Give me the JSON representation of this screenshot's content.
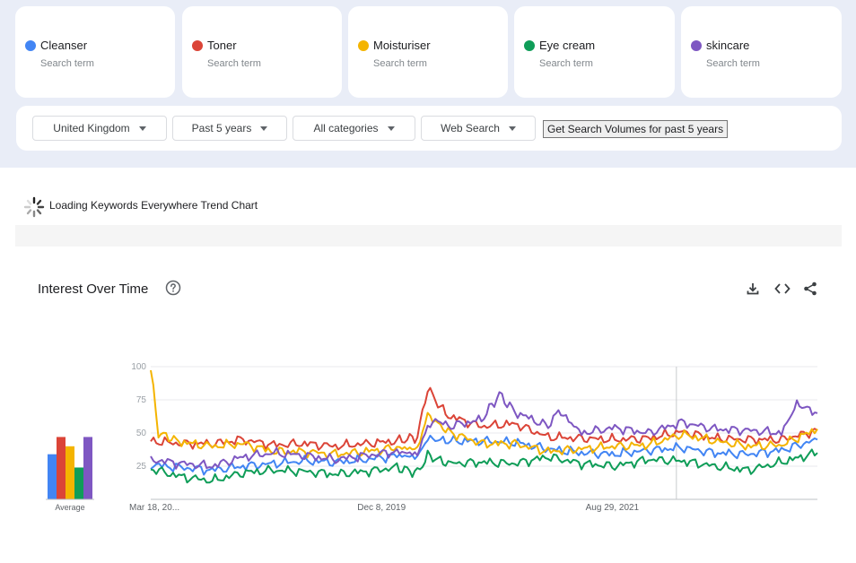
{
  "terms": [
    {
      "name": "Cleanser",
      "sub": "Search term",
      "color": "#4285f4"
    },
    {
      "name": "Toner",
      "sub": "Search term",
      "color": "#db4437"
    },
    {
      "name": "Moisturiser",
      "sub": "Search term",
      "color": "#f4b400"
    },
    {
      "name": "Eye cream",
      "sub": "Search term",
      "color": "#0f9d58"
    },
    {
      "name": "skincare",
      "sub": "Search term",
      "color": "#7e57c2"
    }
  ],
  "filters": {
    "region": "United Kingdom",
    "period": "Past 5 years",
    "category": "All categories",
    "search_type": "Web Search",
    "volume_button": "Get Search Volumes for past 5 years"
  },
  "loading_text": "Loading Keywords Everywhere Trend Chart",
  "chart_title": "Interest Over Time",
  "icons": {
    "help": "help-circle-icon",
    "download": "download-icon",
    "embed": "embed-code-icon",
    "share": "share-icon"
  },
  "chart_data": {
    "type": "line",
    "title": "Interest Over Time",
    "x_range": [
      "2018-03-18",
      "2023-03-12"
    ],
    "x_tick_labels": [
      "Mar 18, 20...",
      "Dec 8, 2019",
      "Aug 29, 2021"
    ],
    "x_tick_dates": [
      "2018-03-18",
      "2019-12-08",
      "2021-08-29"
    ],
    "y_ticks": [
      100,
      75,
      50,
      25
    ],
    "ylim": [
      0,
      100
    ],
    "grid": true,
    "partial_data_marker": "2022-02-20",
    "average_label": "Average",
    "averages": [
      {
        "term": "Cleanser",
        "value": 34,
        "color": "#4285f4"
      },
      {
        "term": "Toner",
        "value": 47,
        "color": "#db4437"
      },
      {
        "term": "Moisturiser",
        "value": 40,
        "color": "#f4b400"
      },
      {
        "term": "Eye cream",
        "value": 24,
        "color": "#0f9d58"
      },
      {
        "term": "skincare",
        "value": 47,
        "color": "#7e57c2"
      }
    ],
    "series": [
      {
        "name": "Cleanser",
        "color": "#4285f4",
        "points": [
          [
            "2018-03-18",
            26
          ],
          [
            "2018-06-10",
            24
          ],
          [
            "2018-09-02",
            22
          ],
          [
            "2018-11-25",
            25
          ],
          [
            "2019-02-17",
            27
          ],
          [
            "2019-05-12",
            29
          ],
          [
            "2019-08-04",
            28
          ],
          [
            "2019-10-27",
            30
          ],
          [
            "2020-01-19",
            33
          ],
          [
            "2020-03-15",
            32
          ],
          [
            "2020-04-12",
            46
          ],
          [
            "2020-06-07",
            44
          ],
          [
            "2020-09-06",
            44
          ],
          [
            "2020-12-06",
            43
          ],
          [
            "2021-03-07",
            38
          ],
          [
            "2021-06-06",
            35
          ],
          [
            "2021-09-05",
            34
          ],
          [
            "2021-12-05",
            37
          ],
          [
            "2022-03-06",
            39
          ],
          [
            "2022-06-05",
            35
          ],
          [
            "2022-09-04",
            34
          ],
          [
            "2022-12-04",
            37
          ],
          [
            "2023-03-12",
            45
          ]
        ]
      },
      {
        "name": "Toner",
        "color": "#db4437",
        "points": [
          [
            "2018-03-18",
            44
          ],
          [
            "2018-06-10",
            42
          ],
          [
            "2018-09-02",
            42
          ],
          [
            "2018-11-25",
            45
          ],
          [
            "2019-02-17",
            41
          ],
          [
            "2019-05-12",
            42
          ],
          [
            "2019-08-04",
            40
          ],
          [
            "2019-10-27",
            42
          ],
          [
            "2020-01-19",
            44
          ],
          [
            "2020-03-15",
            47
          ],
          [
            "2020-04-12",
            84
          ],
          [
            "2020-05-10",
            72
          ],
          [
            "2020-06-07",
            63
          ],
          [
            "2020-09-06",
            55
          ],
          [
            "2020-12-06",
            57
          ],
          [
            "2021-03-07",
            47
          ],
          [
            "2021-06-06",
            46
          ],
          [
            "2021-09-05",
            45
          ],
          [
            "2021-12-05",
            46
          ],
          [
            "2022-03-06",
            51
          ],
          [
            "2022-06-05",
            46
          ],
          [
            "2022-09-04",
            45
          ],
          [
            "2022-12-04",
            45
          ],
          [
            "2023-03-12",
            52
          ]
        ]
      },
      {
        "name": "Moisturiser",
        "color": "#f4b400",
        "points": [
          [
            "2018-03-18",
            98
          ],
          [
            "2018-04-08",
            50
          ],
          [
            "2018-06-10",
            43
          ],
          [
            "2018-09-02",
            40
          ],
          [
            "2018-11-25",
            42
          ],
          [
            "2019-02-17",
            36
          ],
          [
            "2019-05-12",
            36
          ],
          [
            "2019-08-04",
            34
          ],
          [
            "2019-10-27",
            36
          ],
          [
            "2020-01-19",
            39
          ],
          [
            "2020-03-15",
            38
          ],
          [
            "2020-04-12",
            64
          ],
          [
            "2020-05-10",
            57
          ],
          [
            "2020-06-07",
            51
          ],
          [
            "2020-09-06",
            42
          ],
          [
            "2020-12-06",
            42
          ],
          [
            "2021-03-07",
            36
          ],
          [
            "2021-06-06",
            38
          ],
          [
            "2021-09-05",
            40
          ],
          [
            "2021-12-05",
            41
          ],
          [
            "2022-03-06",
            49
          ],
          [
            "2022-06-05",
            44
          ],
          [
            "2022-09-04",
            40
          ],
          [
            "2022-12-04",
            41
          ],
          [
            "2023-03-12",
            53
          ]
        ]
      },
      {
        "name": "Eye cream",
        "color": "#0f9d58",
        "points": [
          [
            "2018-03-18",
            23
          ],
          [
            "2018-06-10",
            17
          ],
          [
            "2018-09-02",
            14
          ],
          [
            "2018-11-25",
            20
          ],
          [
            "2019-02-17",
            22
          ],
          [
            "2019-05-12",
            21
          ],
          [
            "2019-08-04",
            19
          ],
          [
            "2019-10-27",
            21
          ],
          [
            "2020-01-19",
            24
          ],
          [
            "2020-03-15",
            20
          ],
          [
            "2020-04-12",
            33
          ],
          [
            "2020-06-07",
            27
          ],
          [
            "2020-09-06",
            28
          ],
          [
            "2020-12-06",
            27
          ],
          [
            "2021-03-07",
            32
          ],
          [
            "2021-06-06",
            27
          ],
          [
            "2021-09-05",
            25
          ],
          [
            "2021-12-05",
            30
          ],
          [
            "2022-03-06",
            29
          ],
          [
            "2022-06-05",
            25
          ],
          [
            "2022-09-04",
            22
          ],
          [
            "2022-12-04",
            28
          ],
          [
            "2023-03-12",
            35
          ]
        ]
      },
      {
        "name": "skincare",
        "color": "#7e57c2",
        "points": [
          [
            "2018-03-18",
            30
          ],
          [
            "2018-06-10",
            27
          ],
          [
            "2018-09-02",
            25
          ],
          [
            "2018-11-25",
            32
          ],
          [
            "2019-02-17",
            35
          ],
          [
            "2019-05-12",
            33
          ],
          [
            "2019-08-04",
            30
          ],
          [
            "2019-10-27",
            33
          ],
          [
            "2020-01-19",
            36
          ],
          [
            "2020-03-15",
            34
          ],
          [
            "2020-04-12",
            55
          ],
          [
            "2020-05-10",
            60
          ],
          [
            "2020-06-07",
            55
          ],
          [
            "2020-09-06",
            60
          ],
          [
            "2020-10-25",
            79
          ],
          [
            "2020-12-06",
            66
          ],
          [
            "2021-03-07",
            55
          ],
          [
            "2021-04-04",
            67
          ],
          [
            "2021-06-06",
            50
          ],
          [
            "2021-09-05",
            54
          ],
          [
            "2021-12-05",
            50
          ],
          [
            "2022-03-06",
            58
          ],
          [
            "2022-06-05",
            53
          ],
          [
            "2022-09-04",
            52
          ],
          [
            "2022-12-04",
            50
          ],
          [
            "2023-01-15",
            72
          ],
          [
            "2023-03-12",
            65
          ]
        ]
      }
    ]
  }
}
